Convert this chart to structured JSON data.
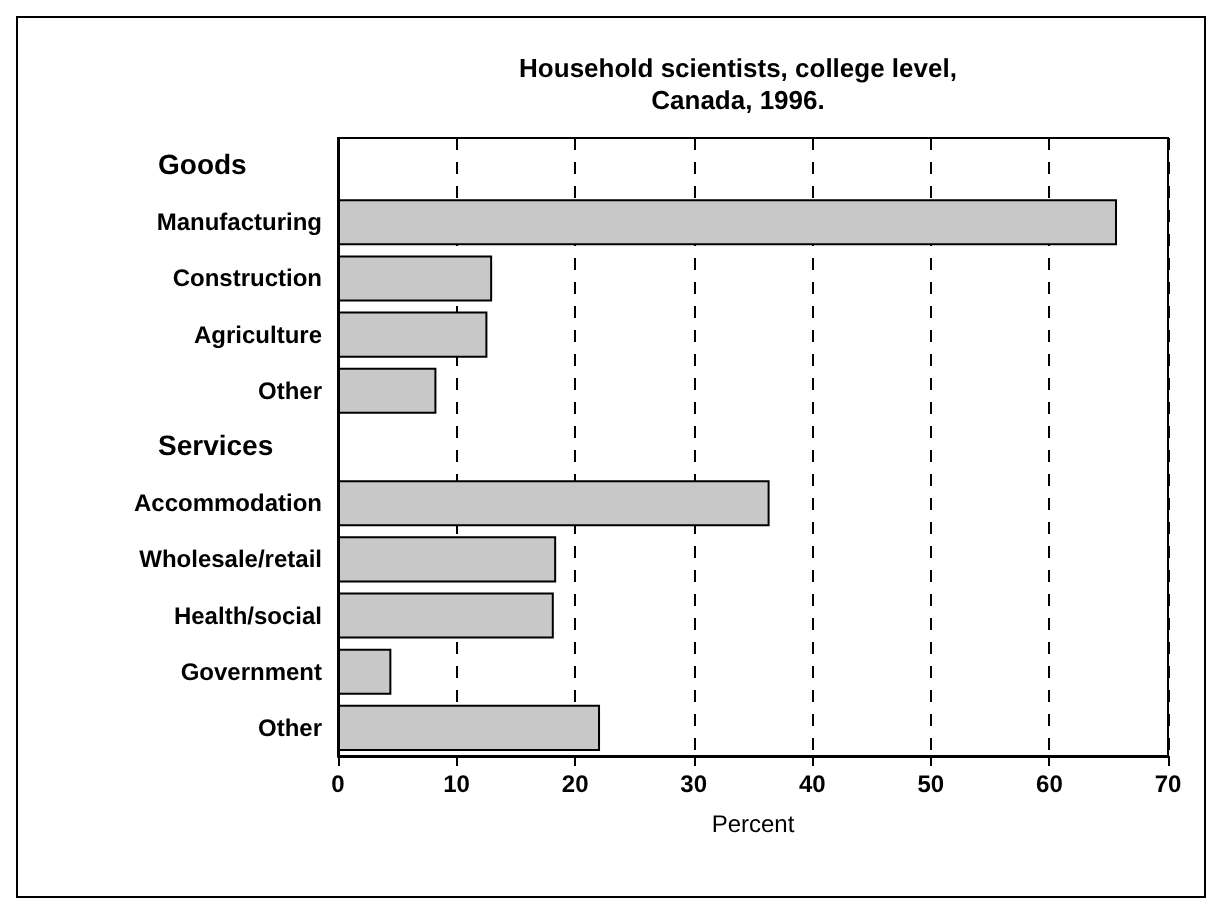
{
  "chart_data": {
    "type": "bar",
    "orientation": "horizontal",
    "title": "Household scientists, college level,\nCanada, 1996.",
    "xlabel": "Percent",
    "categories": [
      null,
      "Manufacturing",
      "Construction",
      "Agriculture",
      "Other",
      null,
      "Accommodation",
      "Wholesale/retail",
      "Health/social",
      "Government",
      "Other"
    ],
    "annotations": [
      "Goods",
      "Services"
    ],
    "values": [
      null,
      65.7,
      13.0,
      12.6,
      8.3,
      null,
      36.4,
      18.4,
      18.2,
      4.5,
      22.1
    ],
    "color": "#c8c8c8",
    "xlim": [
      0,
      70
    ],
    "xticks": [
      0,
      10,
      20,
      30,
      40,
      50,
      60,
      70
    ],
    "grid": "x"
  }
}
